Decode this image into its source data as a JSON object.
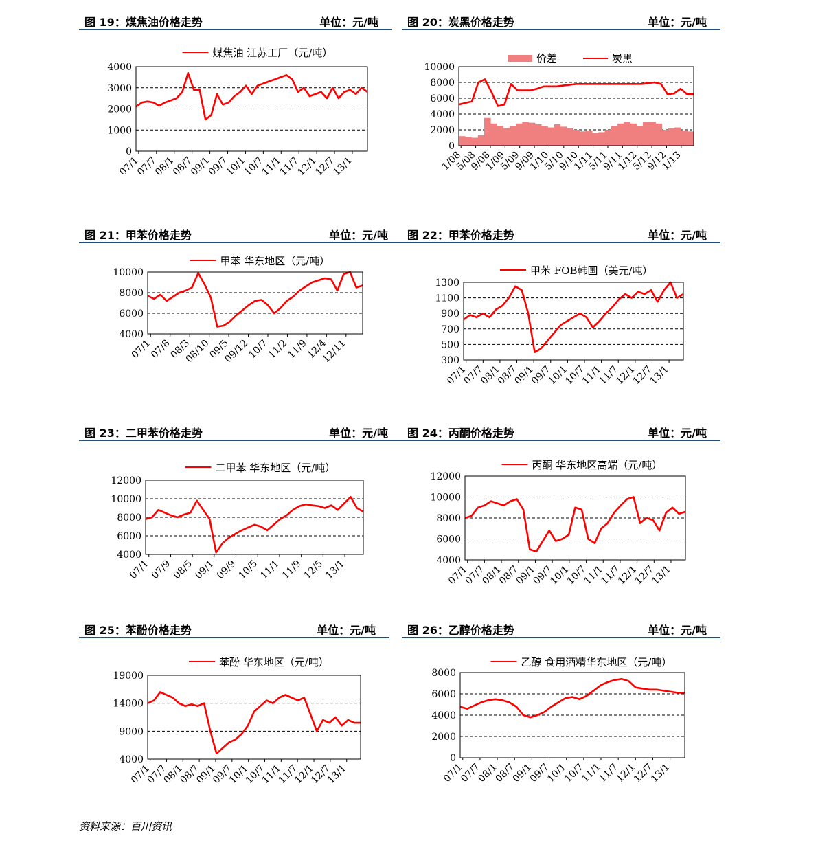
{
  "source_note": "资料来源：百川资讯",
  "colors": {
    "line": "#ff0000",
    "bar": "#f08080",
    "header_rule": "#1f4e79"
  },
  "figures": [
    {
      "title": "图 19：煤焦油价格走势",
      "unit": "单位：元/吨",
      "chart_data": {
        "type": "line",
        "legend": "煤焦油 江苏工厂（元/吨）",
        "ylim": [
          0,
          4000
        ],
        "yticks": [
          "0",
          "1000",
          "2000",
          "3000",
          "4000"
        ],
        "xticks": [
          "07/1",
          "07/7",
          "08/1",
          "08/7",
          "09/1",
          "09/7",
          "10/1",
          "10/7",
          "11/1",
          "11/7",
          "12/1",
          "12/7",
          "13/1"
        ],
        "series": [
          {
            "name": "煤焦油 江苏工厂（元/吨）",
            "values": [
              2100,
              2300,
              2350,
              2300,
              2150,
              2300,
              2400,
              2500,
              2800,
              3700,
              2900,
              2900,
              1500,
              1700,
              2700,
              2200,
              2300,
              2600,
              2800,
              3100,
              2700,
              3100,
              3200,
              3300,
              3400,
              3500,
              3600,
              3400,
              2800,
              3000,
              2600,
              2700,
              2800,
              2500,
              3000,
              2500,
              2800,
              2900,
              2700,
              3000,
              2800
            ]
          }
        ]
      }
    },
    {
      "title": "图 20：炭黑价格走势",
      "unit": "单位：元/吨",
      "chart_data": {
        "type": "bar+line",
        "legend": [
          "价差",
          "炭黑"
        ],
        "ylim": [
          0,
          10000
        ],
        "yticks": [
          "0",
          "2000",
          "4000",
          "6000",
          "8000",
          "10000"
        ],
        "xticks": [
          "1/08",
          "5/08",
          "9/08",
          "1/09",
          "5/09",
          "9/09",
          "1/10",
          "5/10",
          "9/10",
          "1/11",
          "5/11",
          "9/11",
          "1/12",
          "5/12",
          "9/12",
          "1/13"
        ],
        "series": [
          {
            "name": "价差",
            "values": [
              1200,
              1100,
              1000,
              1300,
              3500,
              2800,
              2500,
              2200,
              2500,
              2800,
              3000,
              2900,
              2700,
              2500,
              2300,
              2700,
              2400,
              2200,
              2000,
              1800,
              1900,
              1600,
              1700,
              2000,
              2500,
              2800,
              3000,
              2800,
              2500,
              3000,
              3000,
              2800,
              2000,
              2200,
              2300,
              1900,
              1800
            ]
          },
          {
            "name": "炭黑",
            "values": [
              5200,
              5400,
              5600,
              8000,
              8400,
              6800,
              5000,
              5200,
              7800,
              7000,
              7000,
              7000,
              7200,
              7500,
              7500,
              7500,
              7600,
              7700,
              7800,
              7800,
              7800,
              7800,
              7800,
              7800,
              7800,
              7800,
              7800,
              7800,
              7800,
              7900,
              8000,
              7800,
              6500,
              6600,
              7200,
              6500,
              6500
            ]
          }
        ]
      }
    },
    {
      "title": "图 21：甲苯价格走势",
      "unit": "单位：元/吨",
      "chart_data": {
        "type": "line",
        "legend": "甲苯 华东地区（元/吨）",
        "ylim": [
          4000,
          10000
        ],
        "yticks": [
          "4000",
          "6000",
          "8000",
          "10000"
        ],
        "xticks": [
          "07/1",
          "07/8",
          "08/3",
          "08/10",
          "09/5",
          "09/12",
          "10/7",
          "11/2",
          "11/9",
          "12/4",
          "12/11"
        ],
        "series": [
          {
            "name": "甲苯 华东地区（元/吨）",
            "values": [
              7700,
              7400,
              7800,
              7200,
              7600,
              8000,
              8200,
              8500,
              9900,
              8800,
              7500,
              4700,
              4800,
              5200,
              5800,
              6300,
              6800,
              7200,
              7300,
              6800,
              6000,
              6500,
              7200,
              7600,
              8200,
              8600,
              9000,
              9200,
              9400,
              9300,
              8200,
              9800,
              10000,
              8500,
              8700
            ]
          }
        ]
      }
    },
    {
      "title": "图 22：甲苯价格走势",
      "unit": "单位：元/吨",
      "chart_data": {
        "type": "line",
        "legend": "甲苯 FOB韩国（美元/吨）",
        "ylim": [
          300,
          1300
        ],
        "yticks": [
          "300",
          "500",
          "700",
          "900",
          "1100",
          "1300"
        ],
        "xticks": [
          "07/1",
          "07/7",
          "08/1",
          "08/7",
          "09/1",
          "09/7",
          "10/1",
          "10/7",
          "11/1",
          "11/7",
          "12/1",
          "12/7",
          "13/1"
        ],
        "series": [
          {
            "name": "甲苯 FOB韩国（美元/吨）",
            "values": [
              820,
              880,
              850,
              900,
              850,
              950,
              1000,
              1100,
              1250,
              1200,
              900,
              400,
              450,
              550,
              650,
              750,
              800,
              850,
              900,
              850,
              720,
              800,
              900,
              980,
              1080,
              1150,
              1100,
              1180,
              1150,
              1200,
              1050,
              1200,
              1300,
              1100,
              1150
            ]
          }
        ]
      }
    },
    {
      "title": "图 23：二甲苯价格走势",
      "unit": "单位：元/吨",
      "chart_data": {
        "type": "line",
        "legend": "二甲苯 华东地区（元/吨）",
        "ylim": [
          4000,
          12000
        ],
        "yticks": [
          "4000",
          "6000",
          "8000",
          "10000",
          "12000"
        ],
        "xticks": [
          "07/1",
          "07/9",
          "08/5",
          "09/1",
          "09/9",
          "10/5",
          "11/1",
          "11/9",
          "12/5",
          "13/1"
        ],
        "series": [
          {
            "name": "二甲苯 华东地区（元/吨）",
            "values": [
              7800,
              8000,
              8800,
              8500,
              8200,
              8000,
              8300,
              8500,
              9800,
              8800,
              7800,
              4200,
              5200,
              5800,
              6200,
              6600,
              6900,
              7200,
              7000,
              6600,
              7200,
              7800,
              8200,
              8800,
              9200,
              9400,
              9300,
              9200,
              9000,
              9300,
              8800,
              9500,
              10200,
              9000,
              8600
            ]
          }
        ]
      }
    },
    {
      "title": "图 24：丙酮价格走势",
      "unit": "单位：元/吨",
      "chart_data": {
        "type": "line",
        "legend": "丙酮 华东地区高端（元/吨）",
        "ylim": [
          4000,
          12000
        ],
        "yticks": [
          "4000",
          "6000",
          "8000",
          "10000",
          "12000"
        ],
        "xticks": [
          "07/1",
          "07/7",
          "08/1",
          "08/7",
          "09/1",
          "09/7",
          "10/1",
          "10/7",
          "11/1",
          "11/7",
          "12/1",
          "12/7",
          "13/1"
        ],
        "series": [
          {
            "name": "丙酮 华东地区高端（元/吨）",
            "values": [
              8000,
              8200,
              9000,
              9200,
              9600,
              9400,
              9200,
              9600,
              9800,
              8800,
              5000,
              4800,
              5800,
              6800,
              5800,
              6000,
              6400,
              9000,
              8800,
              6000,
              5600,
              7000,
              7500,
              8500,
              9200,
              9800,
              10000,
              7500,
              8000,
              7800,
              6800,
              8500,
              9000,
              8400,
              8600
            ]
          }
        ]
      }
    },
    {
      "title": "图 25：苯酚价格走势",
      "unit": "单位：元/吨",
      "chart_data": {
        "type": "line",
        "legend": "苯酚 华东地区（元/吨）",
        "ylim": [
          4000,
          19000
        ],
        "yticks": [
          "4000",
          "9000",
          "14000",
          "19000"
        ],
        "xticks": [
          "07/1",
          "07/7",
          "08/1",
          "08/7",
          "09/1",
          "09/7",
          "10/1",
          "10/7",
          "11/1",
          "11/7",
          "12/1",
          "12/7",
          "13/1"
        ],
        "series": [
          {
            "name": "苯酚 华东地区（元/吨）",
            "values": [
              14000,
              14500,
              16000,
              15500,
              15000,
              14000,
              13500,
              13800,
              13500,
              14000,
              9000,
              5000,
              6000,
              7000,
              7500,
              8500,
              10000,
              12500,
              13500,
              14500,
              14000,
              15000,
              15500,
              15000,
              14500,
              15000,
              12000,
              9000,
              11000,
              10500,
              11500,
              10000,
              11000,
              10500,
              10500
            ]
          }
        ]
      }
    },
    {
      "title": "图 26：乙醇价格走势",
      "unit": "单位：元/吨",
      "chart_data": {
        "type": "line",
        "legend": "乙醇 食用酒精华东地区（元/吨）",
        "ylim": [
          0,
          8000
        ],
        "yticks": [
          "0",
          "2000",
          "4000",
          "6000",
          "8000"
        ],
        "xticks": [
          "07/1",
          "07/7",
          "08/1",
          "08/7",
          "09/1",
          "09/7",
          "10/1",
          "10/7",
          "11/1",
          "11/7",
          "12/1",
          "12/7",
          "13/1"
        ],
        "series": [
          {
            "name": "乙醇 食用酒精华东地区（元/吨）",
            "values": [
              4800,
              4600,
              4900,
              5200,
              5400,
              5500,
              5400,
              5200,
              4800,
              4000,
              3800,
              4000,
              4300,
              4800,
              5200,
              5600,
              5700,
              5500,
              5800,
              6300,
              6800,
              7100,
              7300,
              7400,
              7200,
              6600,
              6500,
              6400,
              6400,
              6300,
              6200,
              6100,
              6100
            ]
          }
        ]
      }
    }
  ]
}
